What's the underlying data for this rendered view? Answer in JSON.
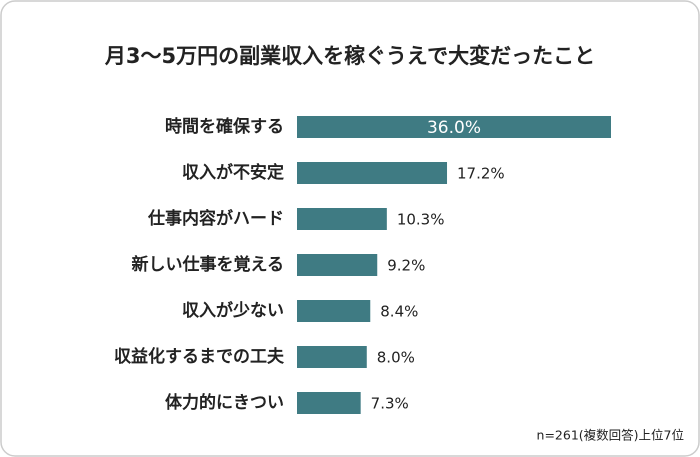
{
  "chart_data": {
    "type": "bar",
    "orientation": "horizontal",
    "title": "月3〜5万円の副業収入を稼ぐうえで大変だったこと",
    "categories": [
      "時間を確保する",
      "収入が不安定",
      "仕事内容がハード",
      "新しい仕事を覚える",
      "収入が少ない",
      "収益化するまでの工夫",
      "体力的にきつい"
    ],
    "values": [
      36.0,
      17.2,
      10.3,
      9.2,
      8.4,
      8.0,
      7.3
    ],
    "value_labels": [
      "36.0%",
      "17.2%",
      "10.3%",
      "9.2%",
      "8.4%",
      "8.0%",
      "7.3%"
    ],
    "color": "#3f7b83",
    "xlim": [
      0,
      36
    ],
    "note": "n=261(複数回答)上位7位"
  }
}
